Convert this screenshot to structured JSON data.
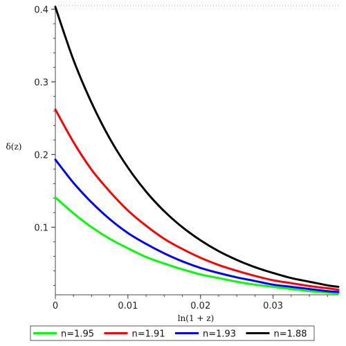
{
  "chart_data": {
    "type": "line",
    "xlabel": "ln(1 + z)",
    "ylabel": "δ(z)",
    "xlim": [
      0,
      0.039
    ],
    "ylim": [
      0.007,
      0.405
    ],
    "xticks": [
      0,
      0.01,
      0.02,
      0.03
    ],
    "xtick_labels": [
      "0",
      "0.01",
      "0.02",
      "0.03"
    ],
    "yticks": [
      0.1,
      0.2,
      0.3,
      0.4
    ],
    "ytick_labels": [
      "0.1",
      "0.2",
      "0.3",
      "0.4"
    ],
    "grid": false,
    "legend_position": "bottom",
    "x": [
      0,
      0.0025,
      0.005,
      0.0075,
      0.01,
      0.0125,
      0.015,
      0.0175,
      0.02,
      0.0225,
      0.025,
      0.0275,
      0.03,
      0.0325,
      0.035,
      0.0375,
      0.039
    ],
    "series": [
      {
        "name": "n=1.95",
        "color": "#00ff00",
        "values": [
          0.141,
          0.119,
          0.1,
          0.084,
          0.071,
          0.059,
          0.05,
          0.042,
          0.035,
          0.03,
          0.025,
          0.021,
          0.018,
          0.015,
          0.012,
          0.01,
          0.009
        ]
      },
      {
        "name": "n=1.91",
        "color": "#ff0000",
        "values": [
          0.262,
          0.217,
          0.179,
          0.149,
          0.123,
          0.102,
          0.084,
          0.07,
          0.058,
          0.048,
          0.04,
          0.033,
          0.027,
          0.023,
          0.019,
          0.016,
          0.014
        ]
      },
      {
        "name": "n=1.93",
        "color": "#0000ff",
        "values": [
          0.193,
          0.161,
          0.134,
          0.111,
          0.092,
          0.077,
          0.064,
          0.053,
          0.044,
          0.037,
          0.031,
          0.026,
          0.021,
          0.018,
          0.015,
          0.012,
          0.011
        ]
      },
      {
        "name": "n=1.88",
        "color": "#000000",
        "values": [
          0.403,
          0.33,
          0.271,
          0.222,
          0.182,
          0.149,
          0.122,
          0.1,
          0.082,
          0.067,
          0.055,
          0.045,
          0.037,
          0.03,
          0.025,
          0.02,
          0.018
        ]
      }
    ],
    "legend_order": [
      "n=1.95",
      "n=1.91",
      "n=1.93",
      "n=1.88"
    ]
  }
}
